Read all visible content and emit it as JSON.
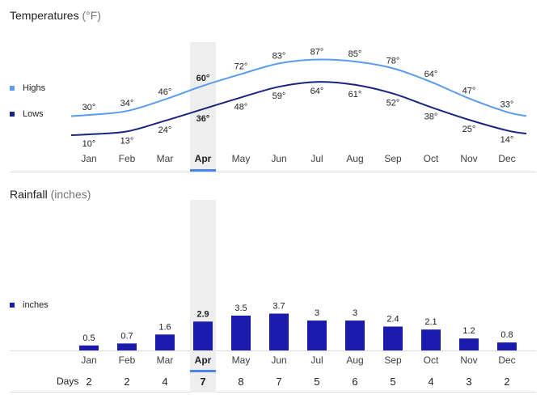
{
  "temperatures": {
    "title": "Temperatures",
    "unit": "(°F)",
    "legend": {
      "highs": "Highs",
      "lows": "Lows"
    }
  },
  "rainfall": {
    "title": "Rainfall",
    "unit": "(inches)",
    "legend": {
      "inches": "inches"
    },
    "days_label": "Days"
  },
  "selected_month": "Apr",
  "colors": {
    "highs": "#5b9bf0",
    "lows": "#1a237e",
    "bars": "#1a1aad",
    "selected_band": "#eeeeee",
    "selected_underline": "#4a86e8"
  },
  "chart_data": [
    {
      "type": "line",
      "title": "Temperatures",
      "categories": [
        "Jan",
        "Feb",
        "Mar",
        "Apr",
        "May",
        "Jun",
        "Jul",
        "Aug",
        "Sep",
        "Oct",
        "Nov",
        "Dec"
      ],
      "series": [
        {
          "name": "Highs",
          "values": [
            30,
            34,
            46,
            60,
            72,
            83,
            87,
            85,
            78,
            64,
            47,
            33
          ],
          "labels": [
            "30°",
            "34°",
            "46°",
            "60°",
            "72°",
            "83°",
            "87°",
            "85°",
            "78°",
            "64°",
            "47°",
            "33°"
          ]
        },
        {
          "name": "Lows",
          "values": [
            10,
            13,
            24,
            36,
            48,
            59,
            64,
            61,
            52,
            38,
            25,
            14
          ],
          "labels": [
            "10°",
            "13°",
            "24°",
            "36°",
            "48°",
            "59°",
            "64°",
            "61°",
            "52°",
            "38°",
            "25°",
            "14°"
          ]
        }
      ],
      "ylim": [
        0,
        95
      ]
    },
    {
      "type": "bar",
      "title": "Rainfall",
      "categories": [
        "Jan",
        "Feb",
        "Mar",
        "Apr",
        "May",
        "Jun",
        "Jul",
        "Aug",
        "Sep",
        "Oct",
        "Nov",
        "Dec"
      ],
      "series": [
        {
          "name": "inches",
          "values": [
            0.5,
            0.7,
            1.6,
            2.9,
            3.5,
            3.7,
            3,
            3,
            2.4,
            2.1,
            1.2,
            0.8
          ],
          "labels": [
            "0.5",
            "0.7",
            "1.6",
            "2.9",
            "3.5",
            "3.7",
            "3",
            "3",
            "2.4",
            "2.1",
            "1.2",
            "0.8"
          ]
        }
      ],
      "days": [
        2,
        2,
        4,
        7,
        8,
        7,
        5,
        6,
        5,
        4,
        3,
        2
      ],
      "ylim": [
        0,
        4
      ]
    }
  ]
}
